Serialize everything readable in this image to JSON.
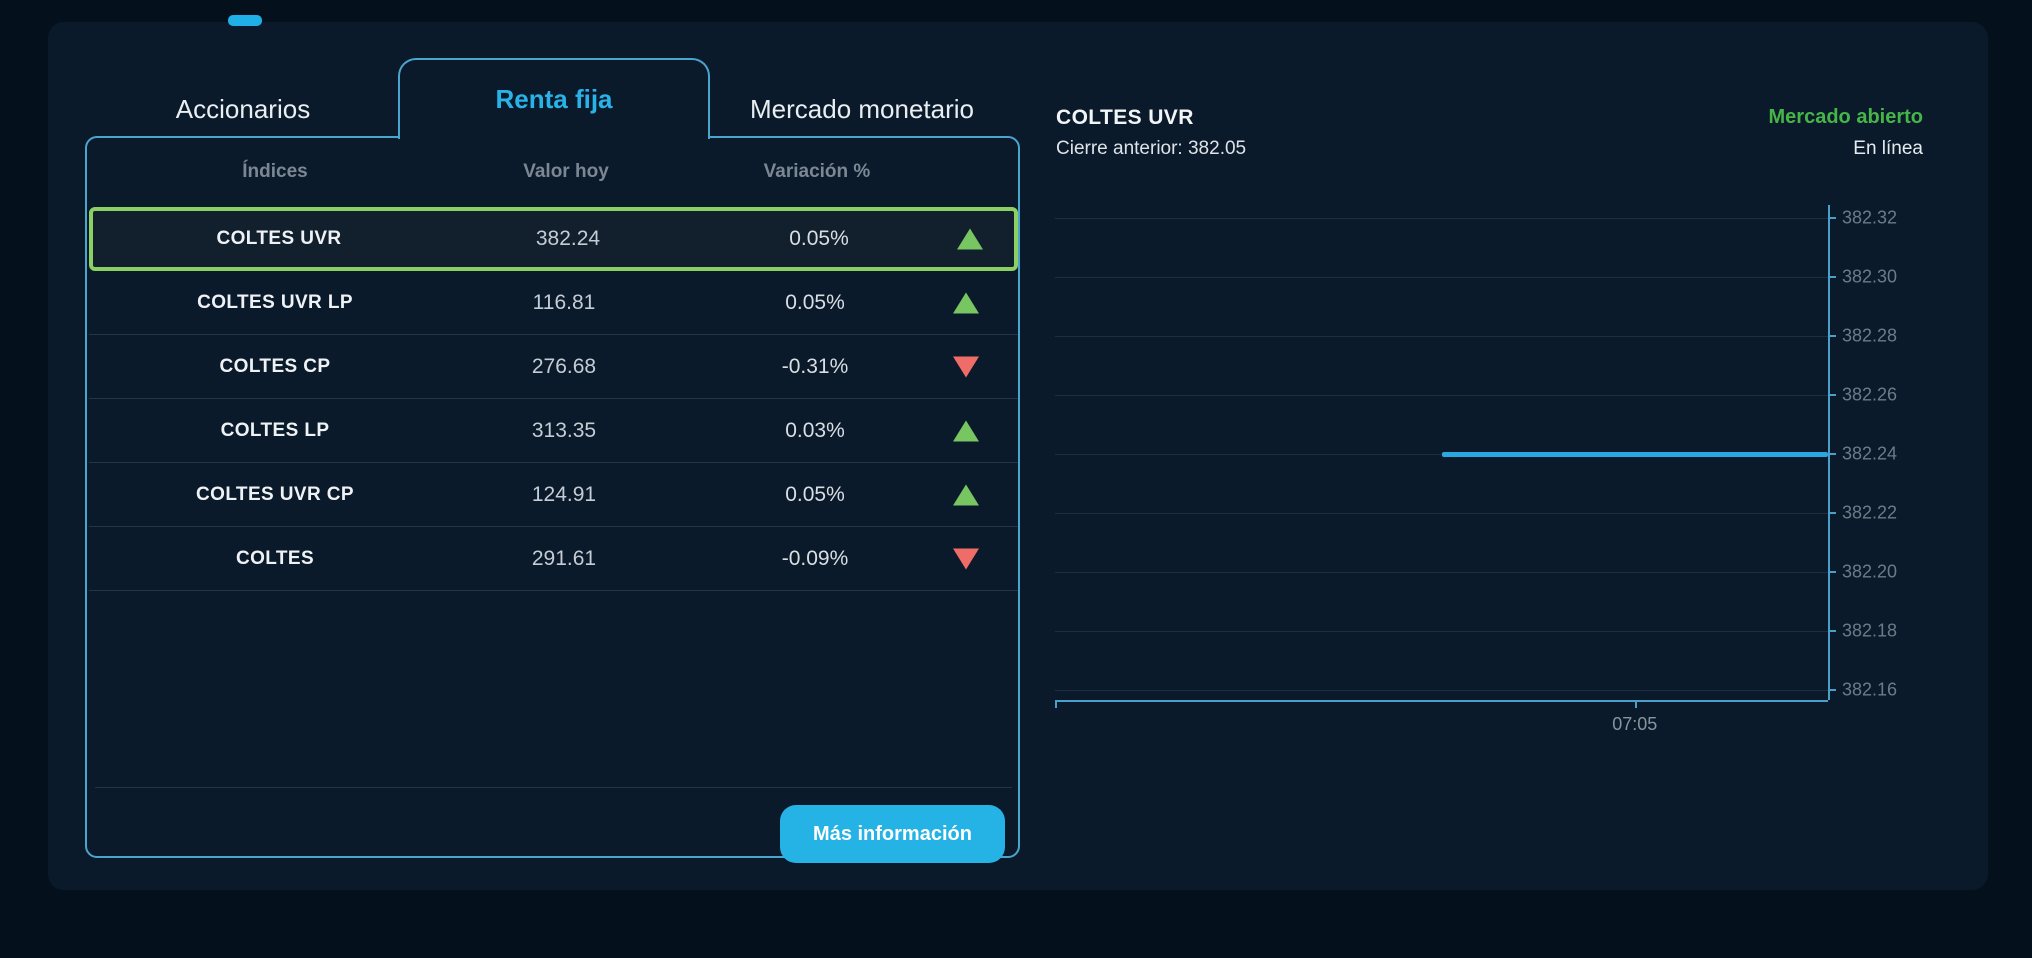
{
  "tabs": {
    "items": [
      {
        "label": "Accionarios",
        "active": false
      },
      {
        "label": "Renta fija",
        "active": true
      },
      {
        "label": "Mercado monetario",
        "active": false
      }
    ]
  },
  "table": {
    "headers": [
      "Índices",
      "Valor hoy",
      "Variación %"
    ],
    "rows": [
      {
        "name": "COLTES UVR",
        "value": "382.24",
        "change": "0.05%",
        "direction": "up",
        "selected": true
      },
      {
        "name": "COLTES UVR LP",
        "value": "116.81",
        "change": "0.05%",
        "direction": "up",
        "selected": false
      },
      {
        "name": "COLTES CP",
        "value": "276.68",
        "change": "-0.31%",
        "direction": "down",
        "selected": false
      },
      {
        "name": "COLTES LP",
        "value": "313.35",
        "change": "0.03%",
        "direction": "up",
        "selected": false
      },
      {
        "name": "COLTES UVR CP",
        "value": "124.91",
        "change": "0.05%",
        "direction": "up",
        "selected": false
      },
      {
        "name": "COLTES",
        "value": "291.61",
        "change": "-0.09%",
        "direction": "down",
        "selected": false
      }
    ],
    "more_info_label": "Más información"
  },
  "detail": {
    "title": "COLTES UVR",
    "previous_close": "Cierre anterior: 382.05",
    "market_status": "Mercado abierto",
    "connection_status": "En línea"
  },
  "chart_data": {
    "type": "line",
    "series": [
      {
        "name": "COLTES UVR",
        "value": 382.24,
        "x_start_frac": 0.5,
        "x_end_frac": 1.0
      }
    ],
    "y_ticks": [
      "382.32",
      "382.30",
      "382.28",
      "382.26",
      "382.24",
      "382.22",
      "382.20",
      "382.18",
      "382.16"
    ],
    "y_max": 382.32,
    "y_min": 382.16,
    "y_step": 0.02,
    "x_ticks": [
      {
        "label": "",
        "frac": 0
      },
      {
        "label": "07:05",
        "frac": 0.75
      }
    ],
    "grid": true,
    "axis_position": "right",
    "line_color": "#2aa9e1",
    "previous_close": 382.05
  },
  "colors": {
    "accent_cyan": "#29b2e8",
    "status_green": "#46b549",
    "selected_border_green": "#8ccf63",
    "up_arrow": "#77c661",
    "down_arrow": "#ef6c68",
    "card_background": "#0b1a2a",
    "page_background": "#04101b"
  }
}
